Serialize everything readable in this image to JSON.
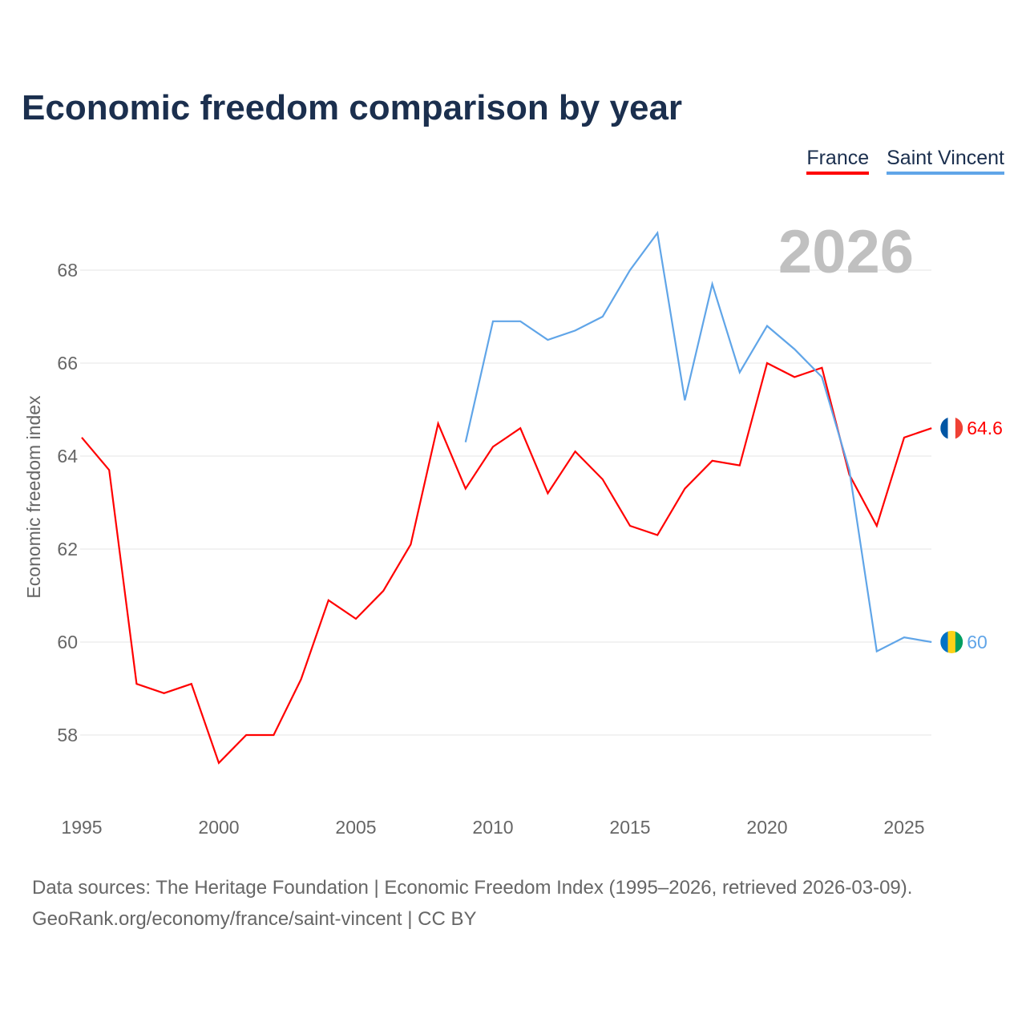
{
  "title": "Economic freedom comparison by year",
  "year_label": "2026",
  "source_line1": "Data sources: The Heritage Foundation | Economic Freedom Index (1995–2026, retrieved 2026-03-09).",
  "source_line2": "GeoRank.org/economy/france/saint-vincent | CC BY",
  "chart_data": {
    "type": "line",
    "title": "Economic freedom comparison by year",
    "xlabel": "",
    "ylabel": "Economic freedom index",
    "xlim": [
      1995,
      2026
    ],
    "ylim": [
      56.5,
      69.5
    ],
    "xticks": [
      1995,
      2000,
      2005,
      2010,
      2015,
      2020,
      2025
    ],
    "yticks": [
      58,
      60,
      62,
      64,
      66,
      68
    ],
    "grid": true,
    "legend_position": "top-right",
    "series": [
      {
        "name": "France",
        "color": "#ff0000",
        "end_label": "64.6",
        "x": [
          1995,
          1996,
          1997,
          1998,
          1999,
          2000,
          2001,
          2002,
          2003,
          2004,
          2005,
          2006,
          2007,
          2008,
          2009,
          2010,
          2011,
          2012,
          2013,
          2014,
          2015,
          2016,
          2017,
          2018,
          2019,
          2020,
          2021,
          2022,
          2023,
          2024,
          2025,
          2026
        ],
        "values": [
          64.4,
          63.7,
          59.1,
          58.9,
          59.1,
          57.4,
          58.0,
          58.0,
          59.2,
          60.9,
          60.5,
          61.1,
          62.1,
          64.7,
          63.3,
          64.2,
          64.6,
          63.2,
          64.1,
          63.5,
          62.5,
          62.3,
          63.3,
          63.9,
          63.8,
          66.0,
          65.7,
          65.9,
          63.6,
          62.5,
          64.4,
          64.6
        ]
      },
      {
        "name": "Saint Vincent",
        "color": "#60a5e8",
        "end_label": "60",
        "x": [
          2009,
          2010,
          2011,
          2012,
          2013,
          2014,
          2015,
          2016,
          2017,
          2018,
          2019,
          2020,
          2021,
          2022,
          2023,
          2024,
          2025,
          2026
        ],
        "values": [
          64.3,
          66.9,
          66.9,
          66.5,
          66.7,
          67.0,
          68.0,
          68.8,
          65.2,
          67.7,
          65.8,
          66.8,
          66.3,
          65.7,
          63.7,
          59.8,
          60.1,
          60.0
        ]
      }
    ]
  }
}
